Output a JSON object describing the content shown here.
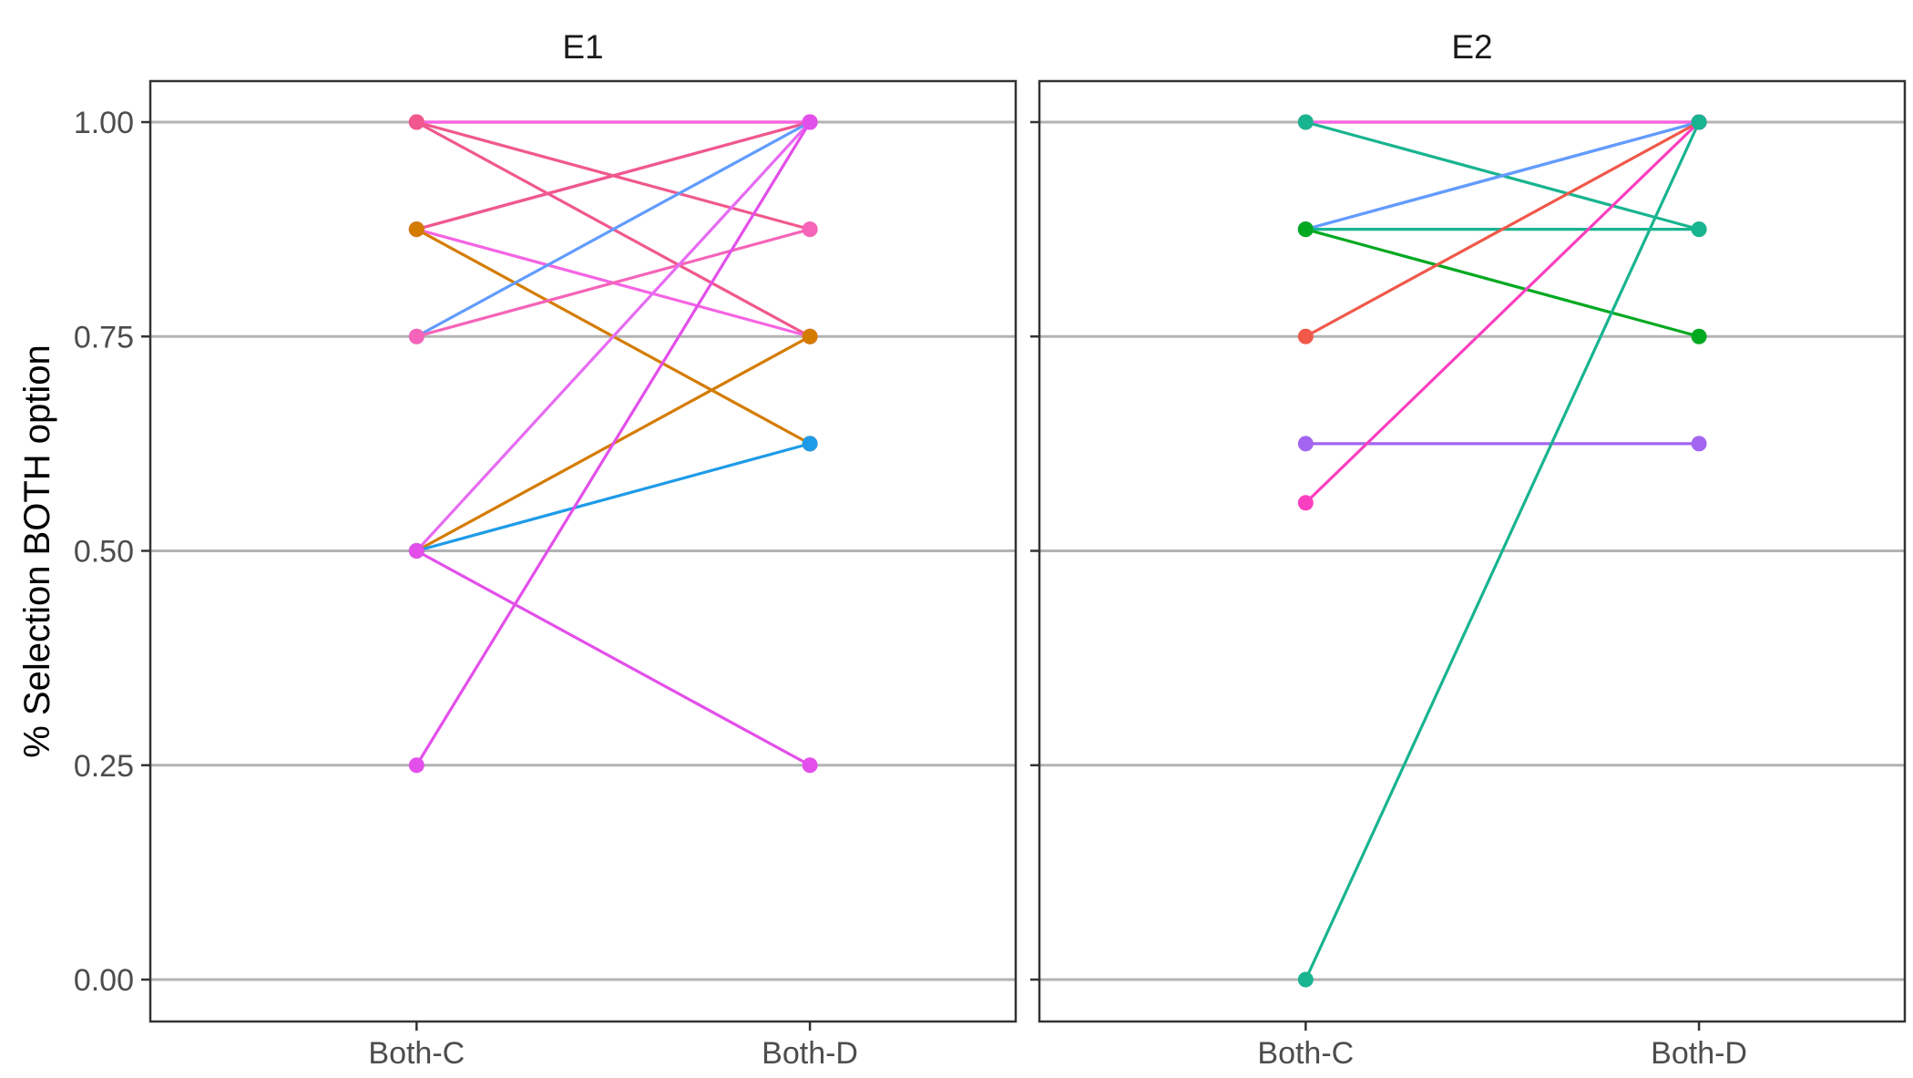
{
  "chart_data": {
    "type": "line",
    "ylabel": "% Selection BOTH option",
    "xlabel": "",
    "ylim": [
      0,
      1
    ],
    "y_ticks": [
      0,
      0.25,
      0.5,
      0.75,
      1.0
    ],
    "y_tick_labels": [
      "0.00",
      "0.25",
      "0.50",
      "0.75",
      "1.00"
    ],
    "categories": [
      "Both-C",
      "Both-D"
    ],
    "grid": "horizontal major",
    "legend": "none",
    "panels": [
      {
        "title": "E1",
        "series": [
          {
            "color": "#F8766D",
            "values": [
              1.0,
              1.0
            ]
          },
          {
            "color": "#F564E3",
            "values": [
              1.0,
              1.0
            ]
          },
          {
            "color": "#F0588E",
            "values": [
              1.0,
              0.875
            ]
          },
          {
            "color": "#F0588E",
            "values": [
              1.0,
              0.75
            ]
          },
          {
            "color": "#F564B8",
            "values": [
              0.875,
              1.0
            ]
          },
          {
            "color": "#F0588E",
            "values": [
              0.875,
              1.0
            ]
          },
          {
            "color": "#F564E3",
            "values": [
              0.875,
              0.75
            ]
          },
          {
            "color": "#D47C00",
            "values": [
              0.875,
              0.625
            ]
          },
          {
            "color": "#619CFF",
            "values": [
              0.75,
              1.0
            ]
          },
          {
            "color": "#F564B8",
            "values": [
              0.75,
              0.875
            ]
          },
          {
            "color": "#E76BF3",
            "values": [
              0.5,
              1.0
            ]
          },
          {
            "color": "#D47C00",
            "values": [
              0.5,
              0.75
            ]
          },
          {
            "color": "#1E9BE8",
            "values": [
              0.5,
              0.625
            ]
          },
          {
            "color": "#E34FEA",
            "values": [
              0.5,
              0.25
            ]
          },
          {
            "color": "#E34FEA",
            "values": [
              0.25,
              1.0
            ]
          }
        ]
      },
      {
        "title": "E2",
        "series": [
          {
            "color": "#F8766D",
            "values": [
              1.0,
              1.0
            ]
          },
          {
            "color": "#F564E3",
            "values": [
              1.0,
              1.0
            ]
          },
          {
            "color": "#18B48F",
            "values": [
              1.0,
              0.875
            ]
          },
          {
            "color": "#8A7CF2",
            "values": [
              0.875,
              1.0
            ]
          },
          {
            "color": "#619CFF",
            "values": [
              0.875,
              1.0
            ]
          },
          {
            "color": "#18B48F",
            "values": [
              0.875,
              0.875
            ]
          },
          {
            "color": "#00A920",
            "values": [
              0.875,
              0.75
            ]
          },
          {
            "color": "#F0584A",
            "values": [
              0.75,
              1.0
            ]
          },
          {
            "color": "#A365F0",
            "values": [
              0.625,
              0.625
            ]
          },
          {
            "color": "#FA3FC0",
            "values": [
              0.556,
              1.0
            ]
          },
          {
            "color": "#18B48F",
            "values": [
              0.0,
              1.0
            ]
          }
        ]
      }
    ]
  }
}
